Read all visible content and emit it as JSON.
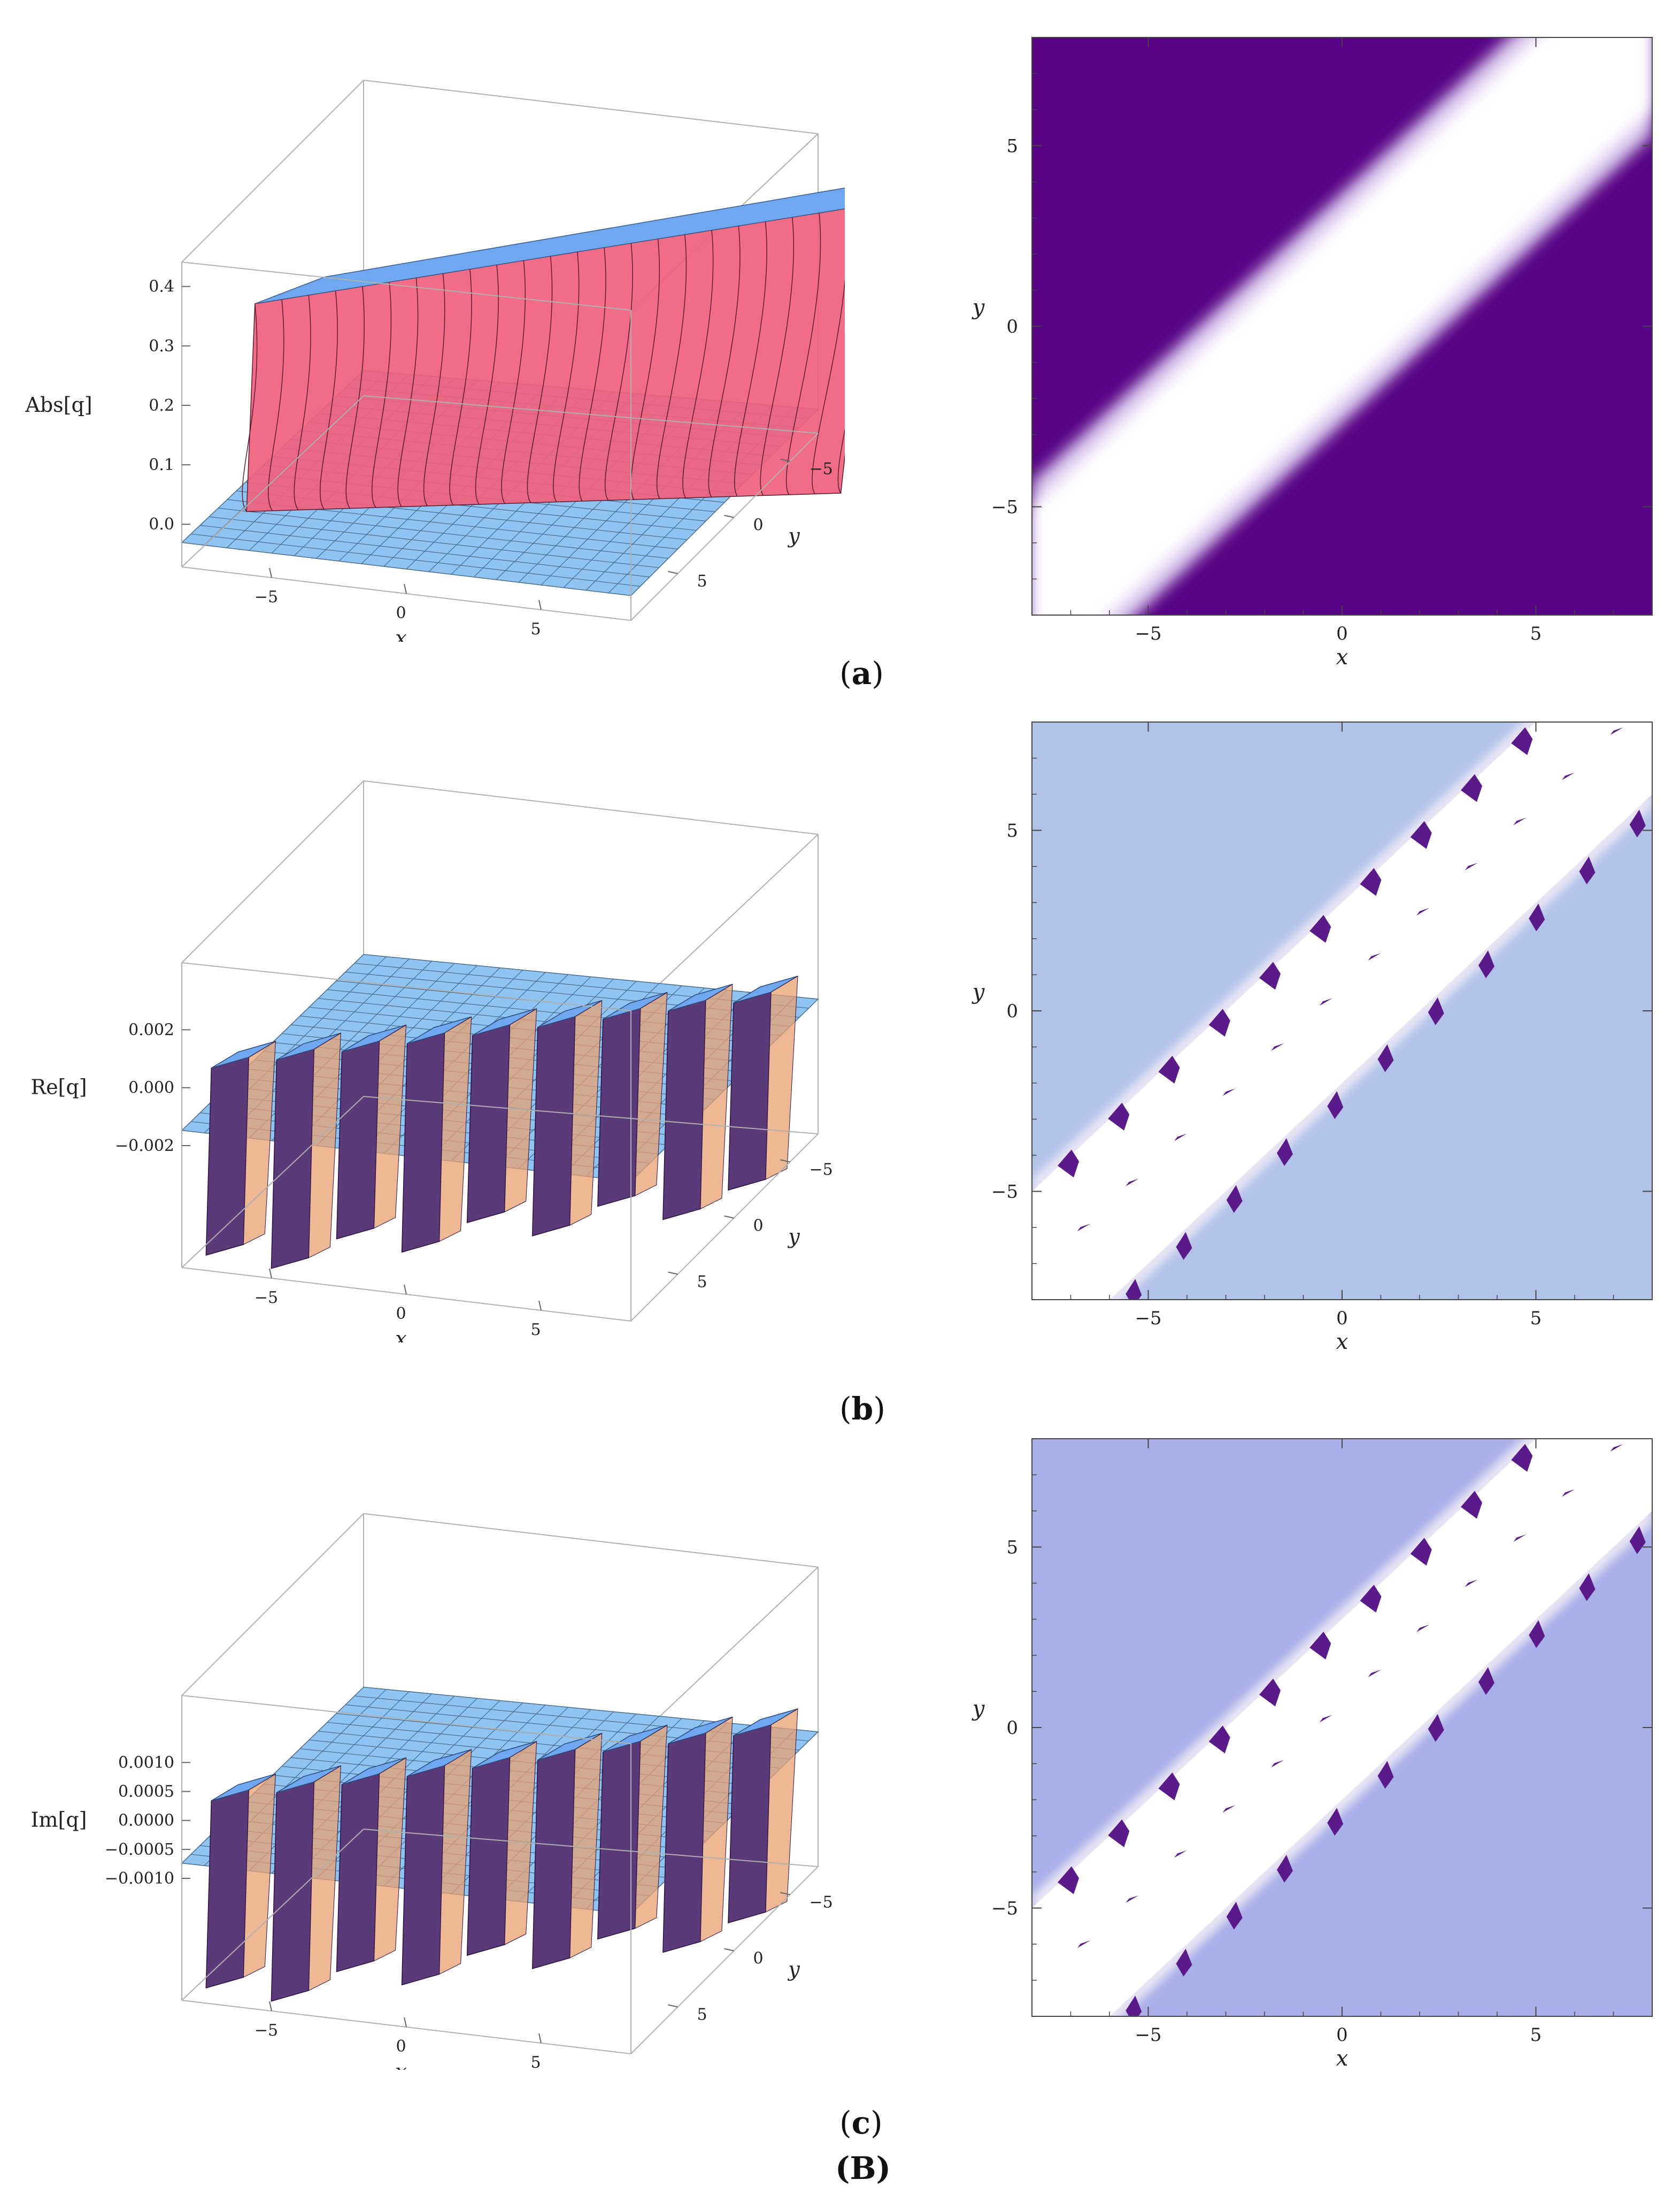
{
  "figure_label": "(B)",
  "rows": [
    {
      "label_open": "(",
      "label_letter": "a",
      "label_close": ")"
    },
    {
      "label_open": "(",
      "label_letter": "b",
      "label_close": ")"
    },
    {
      "label_open": "(",
      "label_letter": "c",
      "label_close": ")"
    }
  ],
  "chart_data": [
    {
      "type": "surface3d",
      "zlabel": "Abs[q]",
      "xlabel": "x",
      "ylabel": "y",
      "x_ticks": [
        "−5",
        "0",
        "5"
      ],
      "y_ticks": [
        "−5",
        "0",
        "5"
      ],
      "z_ticks": [
        "0.0",
        "0.1",
        "0.2",
        "0.3",
        "0.4"
      ],
      "xlim": [
        -8,
        8
      ],
      "ylim": [
        -8,
        8
      ],
      "zlim": [
        0,
        0.4
      ],
      "colors": {
        "top": "#6fa8f0",
        "wall": "#f0607c",
        "floor": "#8fc4f2"
      }
    },
    {
      "type": "heatmap",
      "xlabel": "x",
      "ylabel": "y",
      "x_ticks": [
        "−5",
        "0",
        "5"
      ],
      "y_ticks": [
        "−5",
        "0",
        "5"
      ],
      "tick_values": [
        -5,
        0,
        5
      ],
      "xlim": [
        -8,
        8
      ],
      "ylim": [
        -8,
        8
      ],
      "colors": {
        "background": "#560384",
        "band": "#ffffff"
      }
    },
    {
      "type": "surface3d",
      "zlabel": "Re[q]",
      "xlabel": "x",
      "ylabel": "y",
      "x_ticks": [
        "−5",
        "0",
        "5"
      ],
      "y_ticks": [
        "−5",
        "0",
        "5"
      ],
      "z_ticks": [
        "0.002",
        "0.000",
        "−0.002"
      ],
      "xlim": [
        -8,
        8
      ],
      "ylim": [
        -8,
        8
      ],
      "zlim": [
        -0.002,
        0.002
      ],
      "colors": {
        "top": "#6fa8f0",
        "wall": "#5b3a7a",
        "floor": "#8fc4f2"
      }
    },
    {
      "type": "heatmap",
      "xlabel": "x",
      "ylabel": "y",
      "x_ticks": [
        "−5",
        "0",
        "5"
      ],
      "y_ticks": [
        "−5",
        "0",
        "5"
      ],
      "tick_values": [
        -5,
        0,
        5
      ],
      "xlim": [
        -8,
        8
      ],
      "ylim": [
        -8,
        8
      ],
      "colors": {
        "background": "#b2c3ea",
        "band": "#ffffff",
        "edge": "#5a1a8a"
      }
    },
    {
      "type": "surface3d",
      "zlabel": "Im[q]",
      "xlabel": "x",
      "ylabel": "y",
      "x_ticks": [
        "−5",
        "0",
        "5"
      ],
      "y_ticks": [
        "−5",
        "0",
        "5"
      ],
      "z_ticks": [
        "0.0010",
        "0.0005",
        "0.0000",
        "−0.0005",
        "−0.0010"
      ],
      "xlim": [
        -8,
        8
      ],
      "ylim": [
        -8,
        8
      ],
      "zlim": [
        -0.001,
        0.001
      ],
      "colors": {
        "top": "#6fa8f0",
        "wall": "#5b3a7a",
        "floor": "#8fc4f2"
      }
    },
    {
      "type": "heatmap",
      "xlabel": "x",
      "ylabel": "y",
      "x_ticks": [
        "−5",
        "0",
        "5"
      ],
      "y_ticks": [
        "−5",
        "0",
        "5"
      ],
      "tick_values": [
        -5,
        0,
        5
      ],
      "xlim": [
        -8,
        8
      ],
      "ylim": [
        -8,
        8
      ],
      "colors": {
        "background": "#a9b0e8",
        "band": "#ffffff",
        "edge": "#5a1a8a"
      }
    }
  ]
}
